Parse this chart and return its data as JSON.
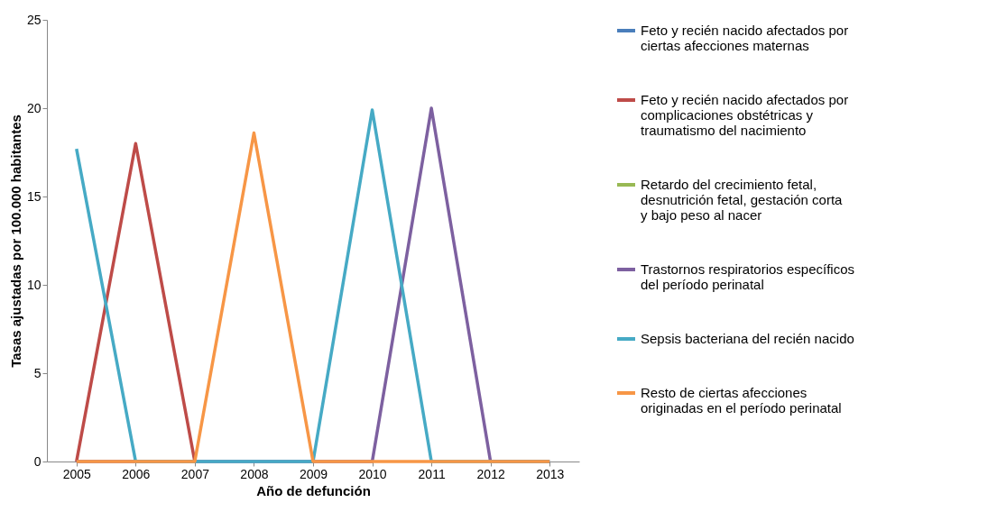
{
  "chart_data": {
    "type": "line",
    "xlabel": "Año de defunción",
    "ylabel": "Tasas ajustadas por 100.000 habitantes",
    "categories": [
      "2005",
      "2006",
      "2007",
      "2008",
      "2009",
      "2010",
      "2011",
      "2012",
      "2013"
    ],
    "series": [
      {
        "name": "Feto y recién nacido afectados por ciertas afecciones maternas",
        "color": "#4a7ebb",
        "values": [
          null,
          null,
          null,
          null,
          null,
          null,
          null,
          null,
          null
        ]
      },
      {
        "name": "Feto y recién nacido afectados por complicaciones obstétricas y traumatismo del nacimiento",
        "color": "#be4b48",
        "values": [
          0,
          18,
          0,
          null,
          null,
          null,
          null,
          null,
          null
        ]
      },
      {
        "name": "Retardo del crecimiento fetal, desnutrición fetal, gestación corta y bajo peso al nacer",
        "color": "#98b954",
        "values": [
          null,
          null,
          null,
          null,
          null,
          null,
          null,
          null,
          null
        ]
      },
      {
        "name": "Trastornos respiratorios específicos del período perinatal",
        "color": "#7d60a0",
        "values": [
          0,
          0,
          0,
          0,
          0,
          0,
          20,
          0,
          0
        ]
      },
      {
        "name": "Sepsis bacteriana del recién nacido",
        "color": "#46aac5",
        "values": [
          17.7,
          0,
          0,
          0,
          0,
          19.9,
          0,
          0,
          0
        ]
      },
      {
        "name": "Resto de ciertas afecciones originadas en el período perinatal",
        "color": "#f79646",
        "values": [
          0,
          0,
          0,
          18.6,
          0,
          0,
          0,
          0,
          0
        ]
      }
    ],
    "ylim": [
      0,
      25
    ],
    "yticks": [
      0,
      5,
      10,
      15,
      20,
      25
    ],
    "grid": false,
    "legend": "right",
    "marker": "none",
    "line_style": "solid"
  }
}
